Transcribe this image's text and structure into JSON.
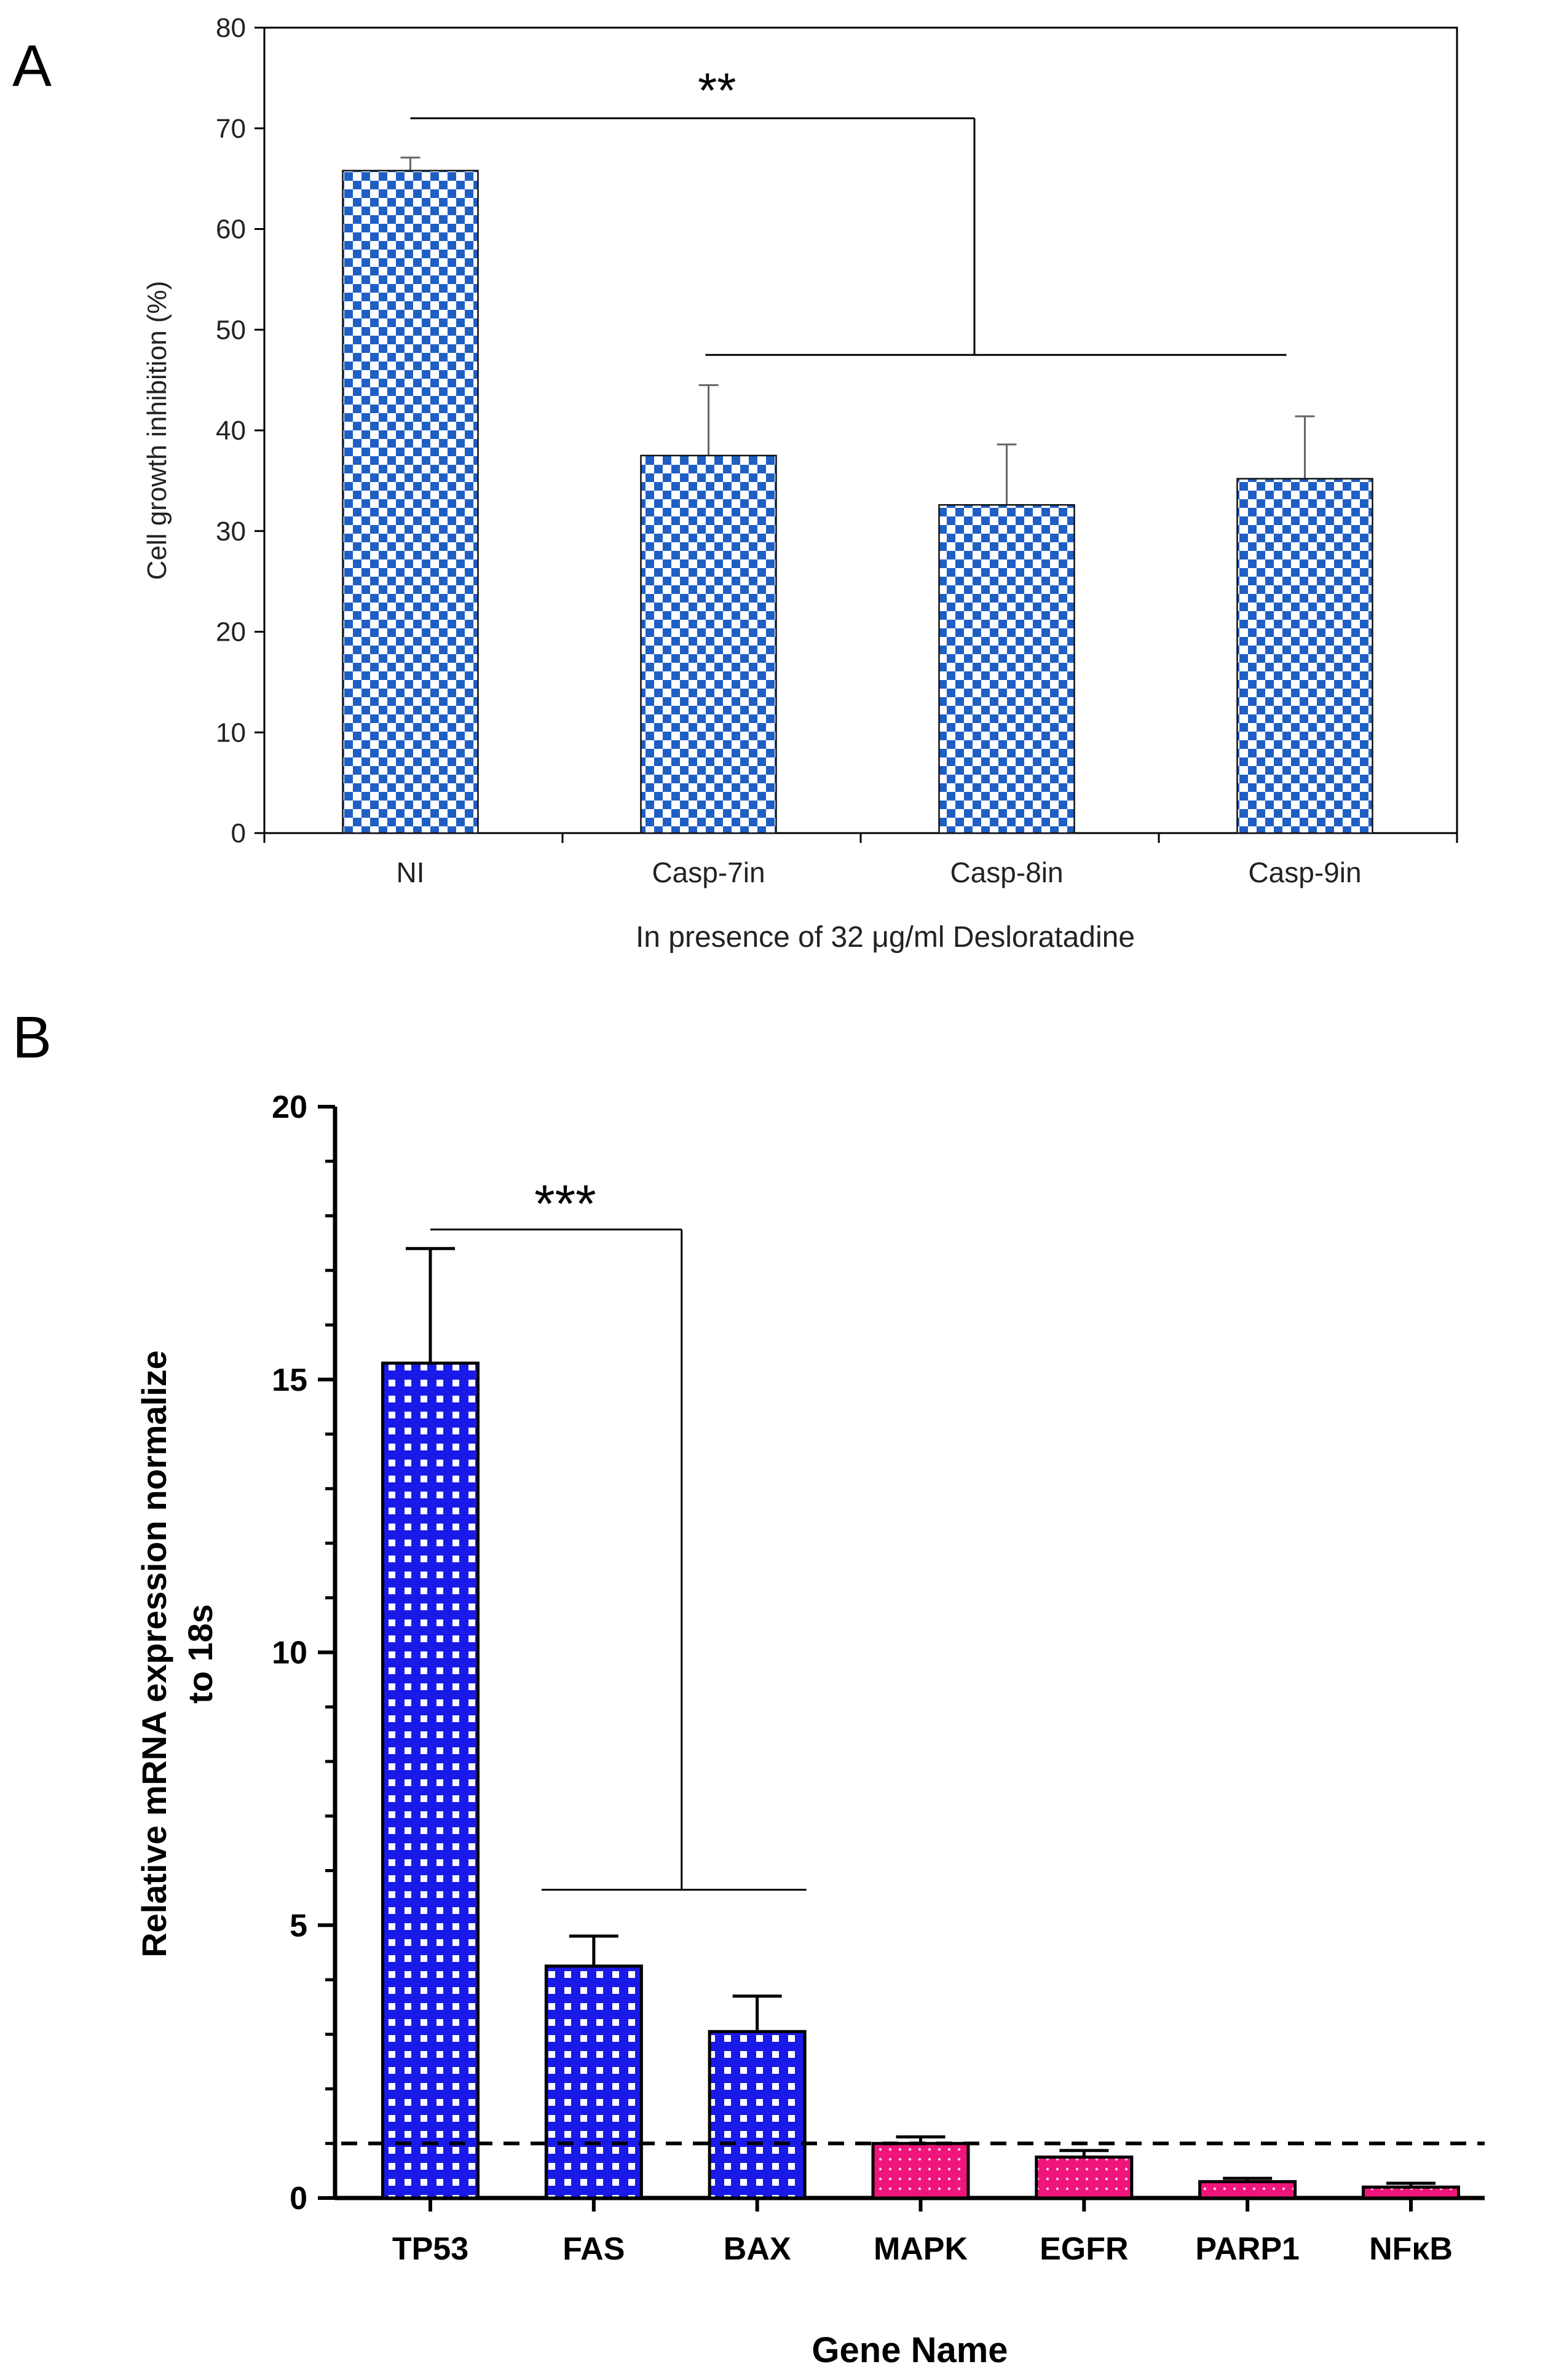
{
  "chart_data": [
    {
      "panel_label": "A",
      "type": "bar",
      "categories": [
        "NI",
        "Casp-7in",
        "Casp-8in",
        "Casp-9in"
      ],
      "values": [
        65.8,
        37.5,
        32.6,
        35.2
      ],
      "errors": [
        1.3,
        7.0,
        6.0,
        6.2
      ],
      "ylabel": "Cell growth inhibition (%)",
      "xlabel": "In presence of 32 μg/ml Desloratadine",
      "ylim": [
        0,
        80
      ],
      "yticks": [
        0,
        10,
        20,
        30,
        40,
        50,
        60,
        70,
        80
      ],
      "ytick_labels": [
        "0",
        "10",
        "20",
        "30",
        "40",
        "50",
        "60",
        "70",
        "80"
      ],
      "bar_color": "#1f5fc4",
      "significance": {
        "label": "**",
        "from_category": "NI",
        "to_categories": [
          "Casp-7in",
          "Casp-8in",
          "Casp-9in"
        ],
        "upper_y": 71,
        "lower_y": 47.5
      }
    },
    {
      "panel_label": "B",
      "type": "bar",
      "categories": [
        "TP53",
        "FAS",
        "BAX",
        "MAPK",
        "EGFR",
        "PARP1",
        "NFκB"
      ],
      "values": [
        15.3,
        4.25,
        3.05,
        1.0,
        0.75,
        0.3,
        0.2
      ],
      "errors": [
        2.1,
        0.55,
        0.65,
        0.12,
        0.12,
        0.06,
        0.07
      ],
      "colors": [
        "#1a1ae8",
        "#1a1ae8",
        "#1a1ae8",
        "#f0157a",
        "#f0157a",
        "#f0157a",
        "#f0157a"
      ],
      "ylabel": "Relative mRNA expression normalize",
      "ylabel2": "to 18s",
      "xlabel": "Gene Name",
      "ylim": [
        0,
        20
      ],
      "yticks": [
        0,
        5,
        10,
        15,
        20
      ],
      "ytick_labels": [
        "0",
        "5",
        "10",
        "15",
        "20"
      ],
      "reference_line": 1,
      "significance": {
        "label": "***",
        "from_category": "TP53",
        "to_categories": [
          "FAS",
          "BAX"
        ],
        "upper_y": 17.75,
        "lower_y": 5.65
      }
    }
  ]
}
